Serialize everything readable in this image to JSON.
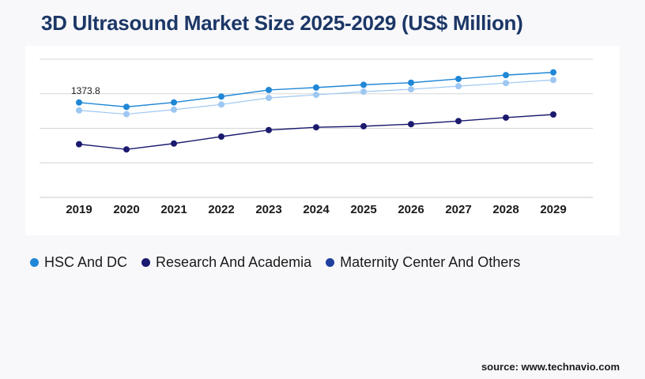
{
  "title": "3D Ultrasound Market Size 2025-2029 (US$ Million)",
  "source": "source: www.technavio.com",
  "chart_data": {
    "type": "line",
    "title": "3D Ultrasound Market Size 2025-2029 (US$ Million)",
    "xlabel": "",
    "ylabel": "",
    "categories": [
      "2019",
      "2020",
      "2021",
      "2022",
      "2023",
      "2024",
      "2025",
      "2026",
      "2027",
      "2028",
      "2029"
    ],
    "series": [
      {
        "name": "HSC And DC",
        "color": "#1f87d6",
        "values": [
          1373.8,
          1310,
          1375,
          1460,
          1555,
          1590,
          1630,
          1660,
          1715,
          1770,
          1810
        ]
      },
      {
        "name": "Research And Academia",
        "color": "#1b1a6e",
        "values": [
          770,
          695,
          780,
          880,
          975,
          1015,
          1030,
          1060,
          1105,
          1155,
          1200
        ]
      },
      {
        "name": "Maternity Center And Others",
        "color": "#9ec7f2",
        "values": [
          1260,
          1205,
          1270,
          1345,
          1440,
          1485,
          1530,
          1565,
          1610,
          1655,
          1700
        ]
      }
    ],
    "data_labels": [
      {
        "series": 0,
        "index": 0,
        "text": "1373.8"
      }
    ],
    "ylim": [
      0,
      2000
    ],
    "grid": true,
    "legend_position": "bottom-left",
    "legend": [
      {
        "label": "HSC And DC",
        "color": "#1f87d6"
      },
      {
        "label": "Research And Academia",
        "color": "#1b1a6e"
      },
      {
        "label": "Maternity Center And Others",
        "color": "#1f3f9e"
      }
    ]
  }
}
